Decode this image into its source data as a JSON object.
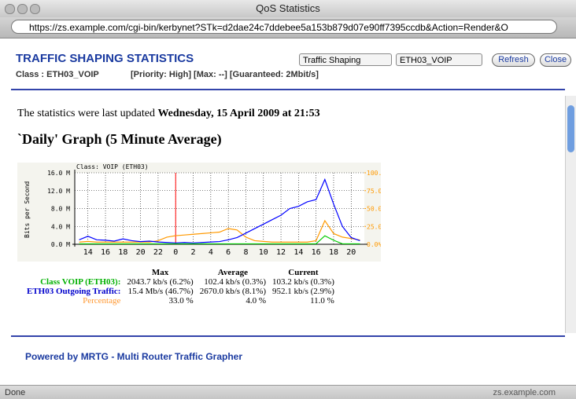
{
  "window": {
    "title": "QoS Statistics",
    "url": "https://zs.example.com/cgi-bin/kerbynet?STk=d2dae24c7ddebee5a153b879d07e90ff7395ccdb&Action=Render&O",
    "status": "Done",
    "host": "zs.example.com"
  },
  "header": {
    "title": "TRAFFIC SHAPING STATISTICS",
    "class": "Class : ETH03_VOIP",
    "info": "[Priority: High] [Max: --] [Guaranteed: 2Mbit/s]",
    "select1": "Traffic Shaping",
    "select2": "ETH03_VOIP",
    "refresh": "Refresh",
    "close": "Close"
  },
  "content": {
    "updated": "The statistics were last updated",
    "updated_date": "Wednesday, 15 April 2009 at 21:53",
    "heading": "`Daily' Graph (5 Minute Average)",
    "footer": "Powered by MRTG - Multi Router Traffic Grapher"
  },
  "chart_data": {
    "type": "line",
    "title": "Class: VOIP (ETH03)",
    "y_label": "Bits per Second",
    "x": [
      1,
      2,
      3,
      4,
      5,
      6,
      7,
      8,
      9,
      10,
      11,
      12,
      13,
      14,
      15,
      16,
      17,
      18,
      19,
      20,
      21,
      22,
      23,
      24,
      25,
      26,
      27,
      28,
      29,
      30,
      31,
      32,
      33
    ],
    "xlim": [
      0.5,
      33.5
    ],
    "xticks": [
      {
        "value": 2,
        "label": "14"
      },
      {
        "value": 4,
        "label": "16"
      },
      {
        "value": 6,
        "label": "18"
      },
      {
        "value": 8,
        "label": "20"
      },
      {
        "value": 10,
        "label": "22"
      },
      {
        "value": 12,
        "label": "0"
      },
      {
        "value": 14,
        "label": "2"
      },
      {
        "value": 16,
        "label": "4"
      },
      {
        "value": 18,
        "label": "6"
      },
      {
        "value": 20,
        "label": "8"
      },
      {
        "value": 22,
        "label": "10"
      },
      {
        "value": 24,
        "label": "12"
      },
      {
        "value": 26,
        "label": "14"
      },
      {
        "value": 28,
        "label": "16"
      },
      {
        "value": 30,
        "label": "18"
      },
      {
        "value": 32,
        "label": "20"
      }
    ],
    "ylim": [
      0,
      16
    ],
    "yticks": [
      {
        "value": 0,
        "label": "0.0 M"
      },
      {
        "value": 4,
        "label": "4.0 M"
      },
      {
        "value": 8,
        "label": "8.0 M"
      },
      {
        "value": 12,
        "label": "12.0 M"
      },
      {
        "value": 16,
        "label": "16.0 M"
      }
    ],
    "y2lim": [
      0,
      100
    ],
    "y2ticks": [
      {
        "value": 0,
        "label": "0.0%"
      },
      {
        "value": 25,
        "label": "25.0%"
      },
      {
        "value": 50,
        "label": "50.0%"
      },
      {
        "value": 75,
        "label": "75.0%"
      },
      {
        "value": 100,
        "label": "100.0%"
      }
    ],
    "grid": true,
    "series": [
      {
        "color": "#ff9900",
        "axis": "y2",
        "values": [
          3,
          4,
          3,
          3,
          3,
          3,
          3,
          3,
          3,
          5,
          10,
          12,
          13,
          14,
          15,
          16,
          17,
          22,
          20,
          10,
          5,
          4,
          3,
          3,
          3,
          3,
          3,
          5,
          33,
          15,
          10,
          8,
          6
        ]
      },
      {
        "color": "#0000ff",
        "values": [
          1.0,
          1.8,
          1.0,
          0.9,
          0.7,
          1.2,
          0.8,
          0.6,
          0.7,
          0.5,
          0.4,
          0.3,
          0.4,
          0.3,
          0.4,
          0.5,
          0.6,
          1.0,
          1.5,
          2.5,
          3.5,
          4.5,
          5.5,
          6.5,
          8.0,
          8.5,
          9.5,
          10.0,
          14.5,
          9.0,
          4.0,
          1.5,
          0.8
        ]
      },
      {
        "color": "#00cc00",
        "values": [
          0.1,
          0.1,
          0.1,
          0.1,
          0.1,
          0.1,
          0.1,
          0.1,
          0.1,
          0.1,
          0.1,
          0.1,
          0.1,
          0.1,
          0.1,
          0.1,
          0.1,
          0.1,
          0.1,
          0.1,
          0.1,
          0.1,
          0.1,
          0.1,
          0.1,
          0.1,
          0.1,
          0.1,
          1.9,
          0.9,
          0.1,
          0.1,
          0.1
        ]
      }
    ]
  },
  "table": {
    "header": [
      "Max",
      "Average",
      "Current"
    ],
    "rows": [
      [
        "Class VOIP (ETH03):",
        "2043.7 kb/s (6.2%)",
        "102.4 kb/s (0.3%)",
        "103.2 kb/s (0.3%)"
      ],
      [
        "ETH03 Outgoing Traffic:",
        "15.4 Mb/s (46.7%)",
        "2670.0 kb/s (8.1%)",
        "952.1 kb/s (2.9%)"
      ],
      [
        "Percentage",
        "33.0 %",
        "4.0 %",
        "11.0 %"
      ]
    ]
  }
}
